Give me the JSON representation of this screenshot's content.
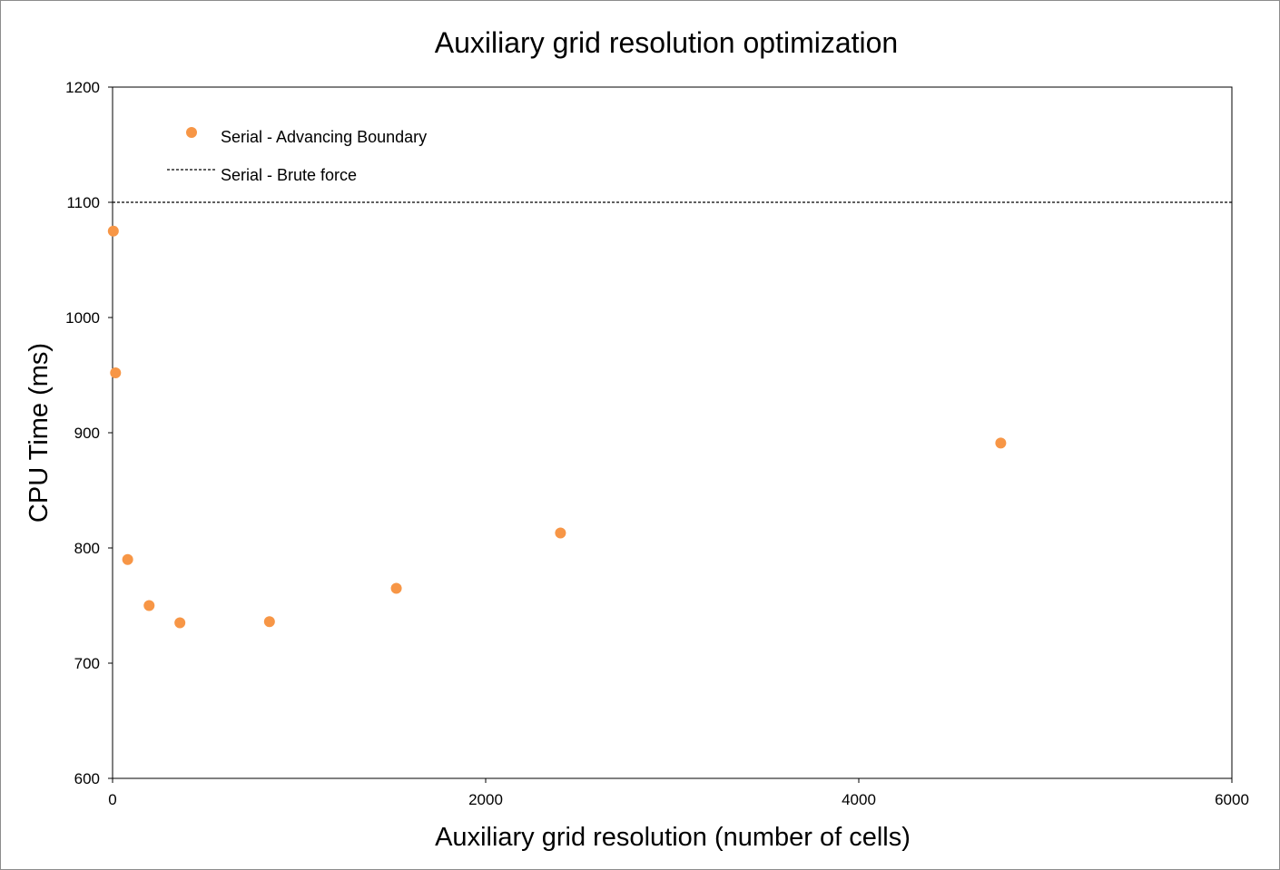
{
  "chart_data": {
    "type": "scatter",
    "title": "Auxiliary grid resolution optimization",
    "xlabel": "Auxiliary grid resolution (number of cells)",
    "ylabel": "CPU Time (ms)",
    "xlim": [
      0,
      6000
    ],
    "ylim": [
      600,
      1200
    ],
    "x_ticks": [
      0,
      2000,
      4000,
      6000
    ],
    "y_ticks": [
      600,
      700,
      800,
      900,
      1000,
      1100,
      1200
    ],
    "x_tick_labels": [
      "0",
      "2000",
      "4000",
      "6000"
    ],
    "y_tick_labels": [
      "600",
      "700",
      "800",
      "900",
      "1000",
      "1100",
      "1200"
    ],
    "grid": false,
    "legend_position": "top-left",
    "series": [
      {
        "name": "Serial - Advancing Boundary",
        "kind": "scatter",
        "color": "#f79646",
        "points": [
          {
            "x": 4,
            "y": 1075
          },
          {
            "x": 16,
            "y": 952
          },
          {
            "x": 81,
            "y": 790
          },
          {
            "x": 196,
            "y": 750
          },
          {
            "x": 361,
            "y": 735
          },
          {
            "x": 841,
            "y": 736
          },
          {
            "x": 1521,
            "y": 765
          },
          {
            "x": 2401,
            "y": 813
          },
          {
            "x": 4761,
            "y": 891
          }
        ]
      },
      {
        "name": "Serial - Brute force",
        "kind": "hline",
        "color": "#000000",
        "y": 1100
      }
    ]
  }
}
